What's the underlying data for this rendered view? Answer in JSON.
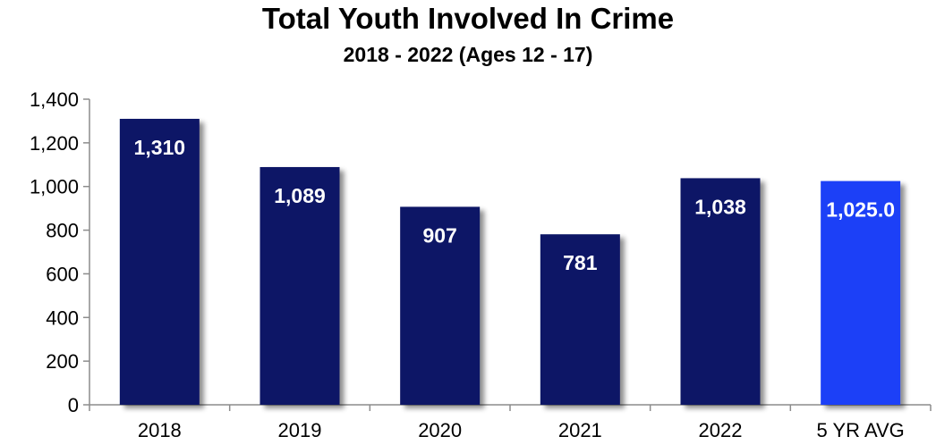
{
  "chart_data": {
    "type": "bar",
    "title": "Total Youth Involved In Crime",
    "subtitle": "2018 - 2022 (Ages 12 - 17)",
    "xlabel": "",
    "ylabel": "",
    "categories": [
      "2018",
      "2019",
      "2020",
      "2021",
      "2022",
      "5 YR AVG"
    ],
    "values": [
      1310,
      1089,
      907,
      781,
      1038,
      1025.0
    ],
    "value_labels": [
      "1,310",
      "1,089",
      "907",
      "781",
      "1,038",
      "1,025.0"
    ],
    "ylim": [
      0,
      1400
    ],
    "yticks": [
      0,
      200,
      400,
      600,
      800,
      1000,
      1200,
      1400
    ],
    "ytick_labels": [
      "0",
      "200",
      "400",
      "600",
      "800",
      "1,000",
      "1,200",
      "1,400"
    ],
    "grid": false,
    "legend": "none",
    "colors": {
      "bar": "#0b1466",
      "highlight_bar": "#1a40f7",
      "shadow": "#9a9a9a",
      "axis": "#8c8c8c"
    }
  }
}
